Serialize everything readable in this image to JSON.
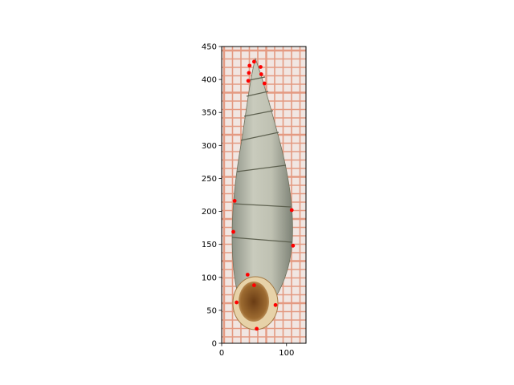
{
  "chart_data": {
    "type": "scatter",
    "title": "",
    "xlabel": "",
    "ylabel": "",
    "xlim": [
      0,
      130
    ],
    "ylim": [
      0,
      450
    ],
    "y_inverted_image_origin": true,
    "xticks": [
      "0",
      "100"
    ],
    "yticks": [
      "0",
      "50",
      "100",
      "150",
      "200",
      "250",
      "300",
      "350",
      "400",
      "450"
    ],
    "xtick_values": [
      0,
      100
    ],
    "ytick_values": [
      0,
      50,
      100,
      150,
      200,
      250,
      300,
      350,
      400,
      450
    ],
    "background": "photograph of an elongated ribbed snail shell on red grid paper",
    "marker_color": "#ff0000",
    "series": [
      {
        "name": "",
        "points": [
          {
            "x": 50,
            "y": 427
          },
          {
            "x": 43,
            "y": 421
          },
          {
            "x": 60,
            "y": 419
          },
          {
            "x": 42,
            "y": 410
          },
          {
            "x": 61,
            "y": 408
          },
          {
            "x": 41,
            "y": 398
          },
          {
            "x": 66,
            "y": 394
          },
          {
            "x": 20,
            "y": 216
          },
          {
            "x": 108,
            "y": 202
          },
          {
            "x": 18,
            "y": 169
          },
          {
            "x": 110,
            "y": 148
          },
          {
            "x": 40,
            "y": 104
          },
          {
            "x": 50,
            "y": 88
          },
          {
            "x": 23,
            "y": 62
          },
          {
            "x": 83,
            "y": 58
          },
          {
            "x": 54,
            "y": 22
          }
        ]
      }
    ]
  }
}
